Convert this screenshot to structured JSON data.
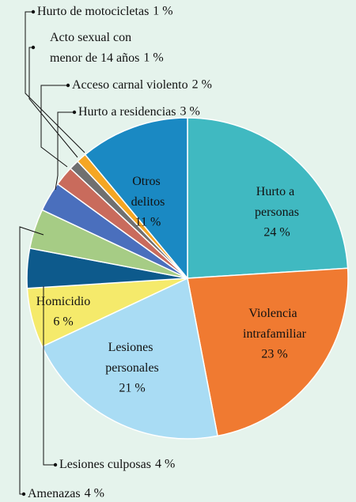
{
  "chart_data": {
    "type": "pie",
    "categories": [
      "Hurto a personas",
      "Violencia intrafamiliar",
      "Lesiones personales",
      "Homicidio",
      "Lesiones culposas",
      "Amenazas",
      "Hurto a residencias",
      "Acceso carnal violento",
      "Acto sexual con menor de 14 años",
      "Hurto de motocicletas",
      "Otros delitos"
    ],
    "values": [
      24,
      23,
      21,
      6,
      4,
      4,
      3,
      2,
      1,
      1,
      11
    ],
    "value_labels": [
      "24 %",
      "23 %",
      "21 %",
      "6 %",
      "4 %",
      "4 %",
      "3 %",
      "2 %",
      "1 %",
      "1 %",
      "11 %"
    ],
    "colors": [
      "#40b9c1",
      "#f07a31",
      "#a9dcf4",
      "#f5ea6b",
      "#0d5a8c",
      "#a6cc85",
      "#4a6fbd",
      "#c96b5c",
      "#707070",
      "#f5a623",
      "#1a89c3"
    ]
  }
}
